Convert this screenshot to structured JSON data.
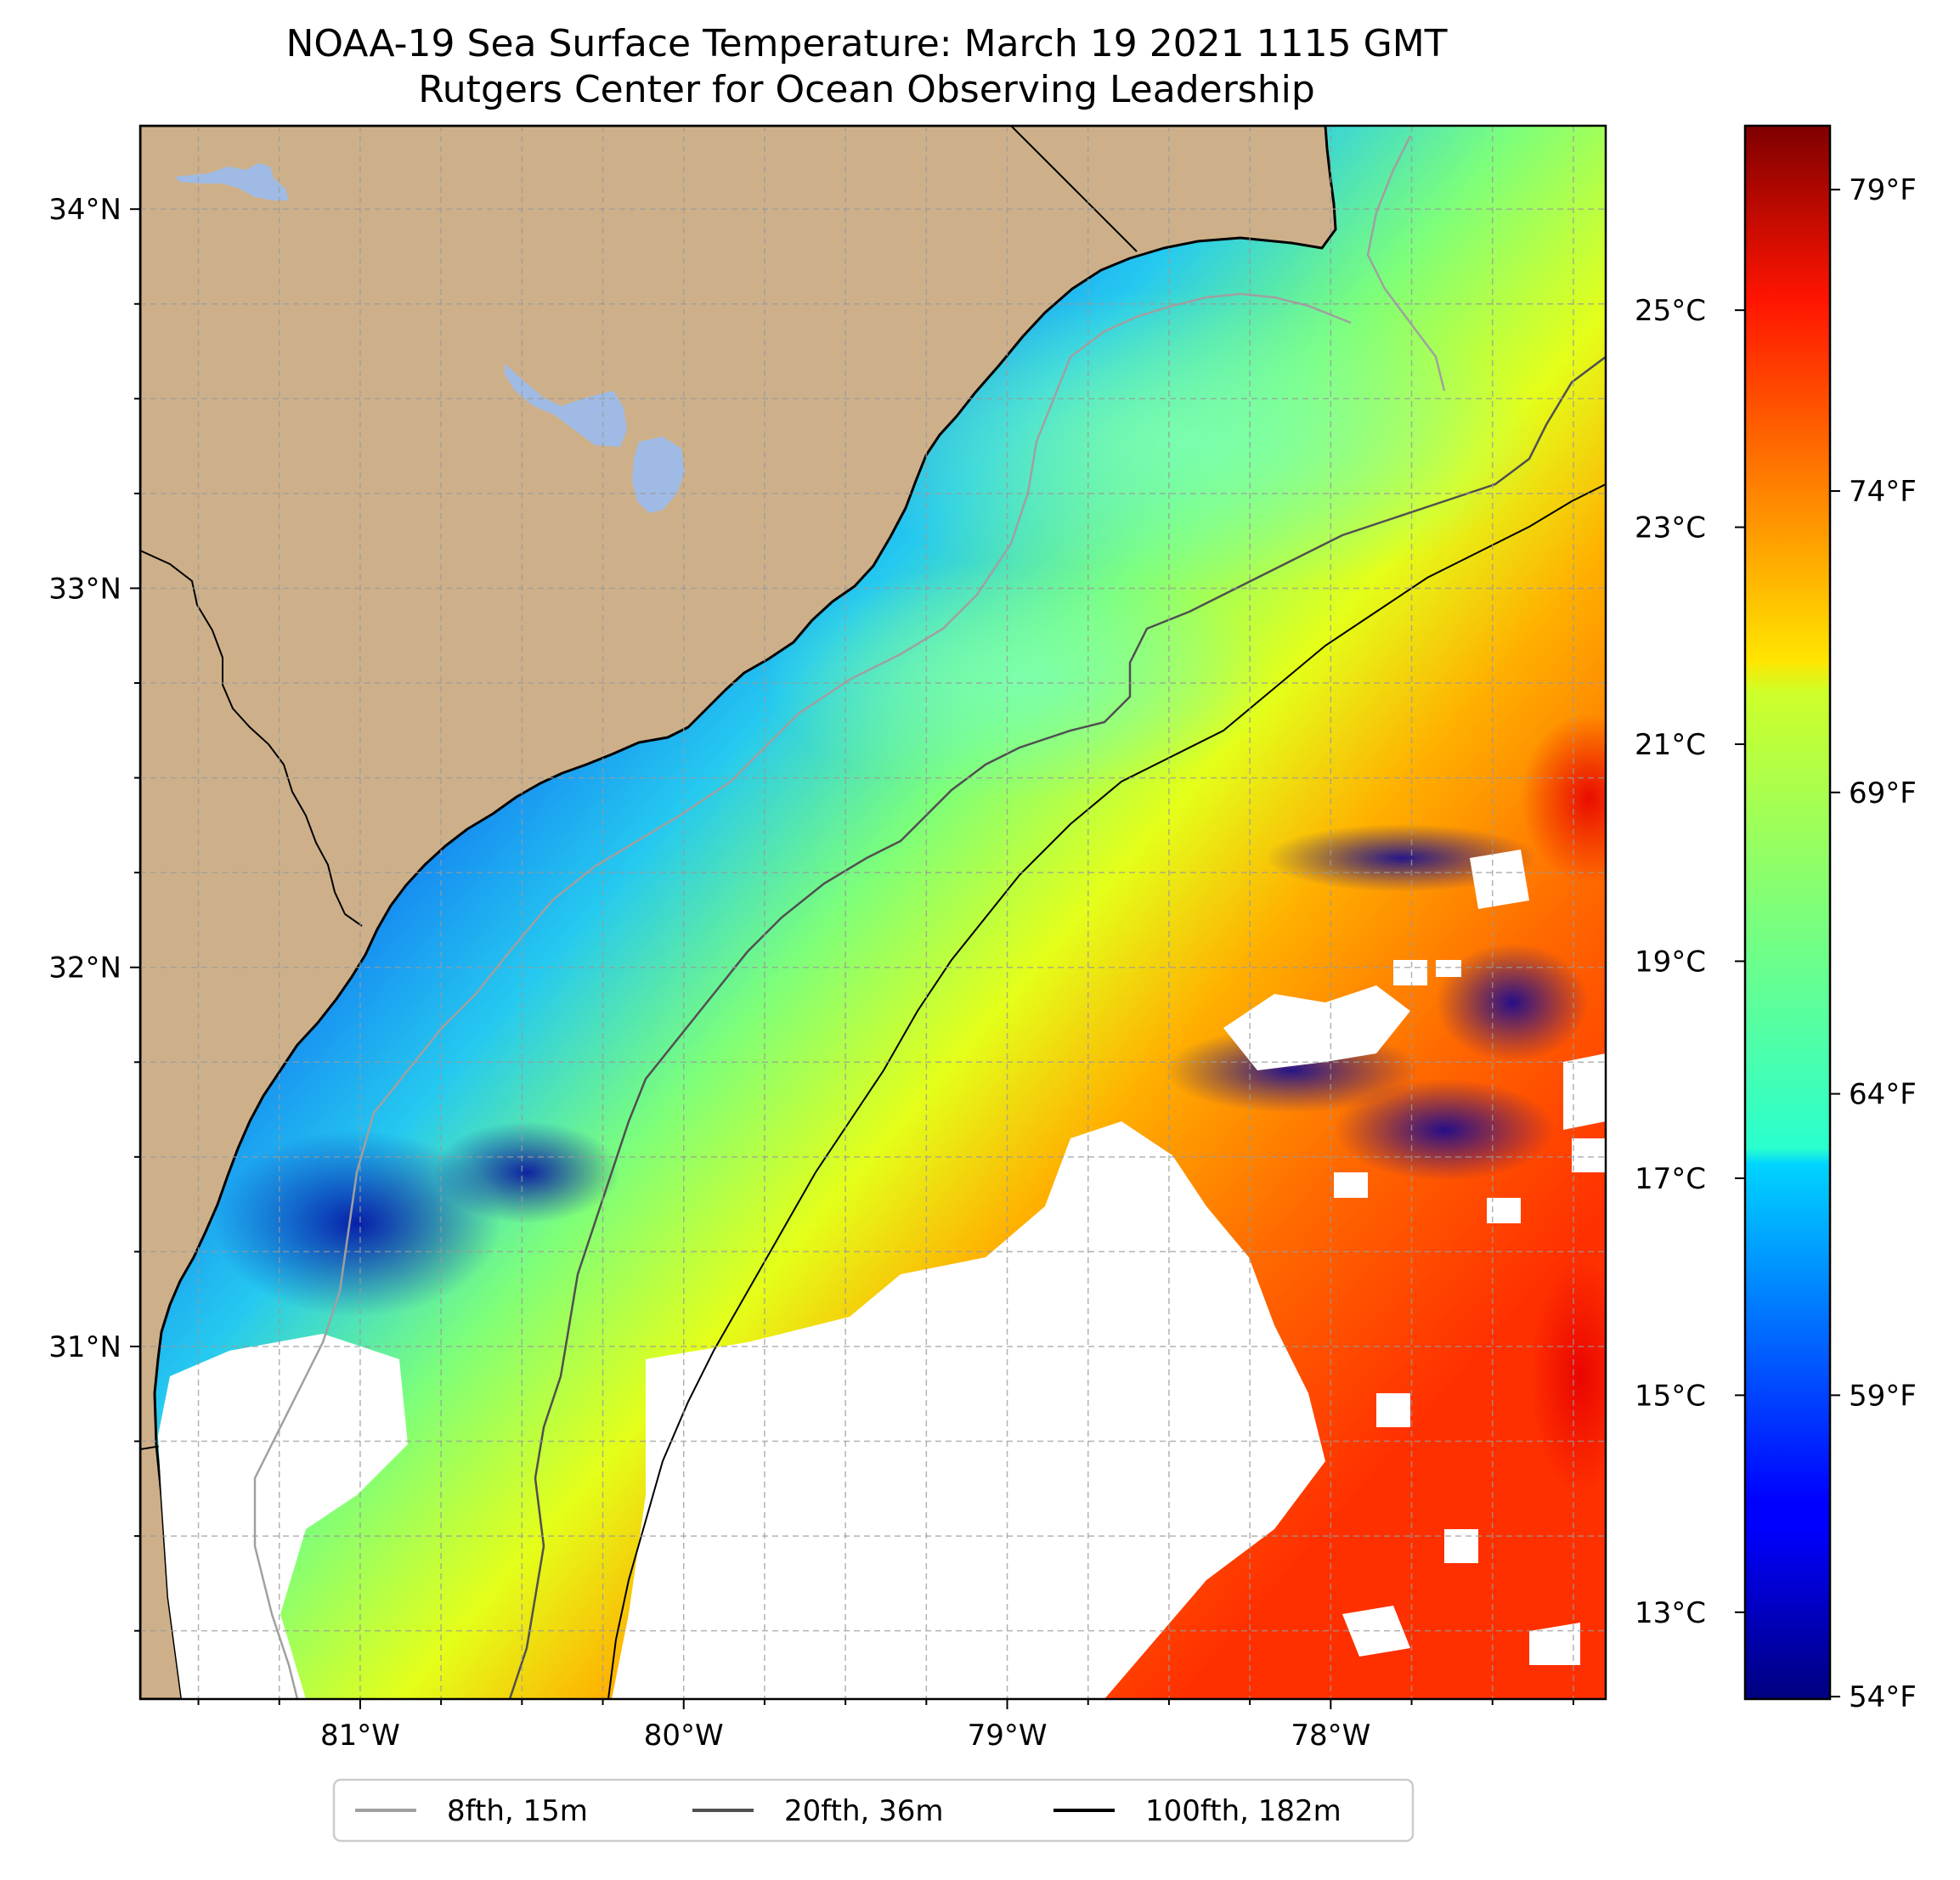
{
  "title": "NOAA-19 Sea Surface Temperature: March 19 2021 1115 GMT",
  "subtitle": "Rutgers Center for Ocean Observing Leadership",
  "colors": {
    "land": "#cdb08a",
    "lake": "#9fbbe5",
    "nodata": "#ffffff",
    "coast": "#000000",
    "grid": "#9a9a9a"
  },
  "map": {
    "lon_range": [
      -81.68,
      -77.15
    ],
    "lat_range": [
      30.07,
      34.22
    ],
    "lon_ticks": [
      {
        "value": -81,
        "label": "81°W"
      },
      {
        "value": -80,
        "label": "80°W"
      },
      {
        "value": -79,
        "label": "79°W"
      },
      {
        "value": -78,
        "label": "78°W"
      }
    ],
    "lat_ticks": [
      {
        "value": 31,
        "label": "31°N"
      },
      {
        "value": 32,
        "label": "32°N"
      },
      {
        "value": 33,
        "label": "33°N"
      },
      {
        "value": 34,
        "label": "34°N"
      }
    ],
    "grid": true,
    "colormap": "jet"
  },
  "colorbar": {
    "celsius_range": [
      12.2,
      26.7
    ],
    "celsius_ticks": [
      {
        "value": 13,
        "label": "13°C"
      },
      {
        "value": 15,
        "label": "15°C"
      },
      {
        "value": 17,
        "label": "17°C"
      },
      {
        "value": 19,
        "label": "19°C"
      },
      {
        "value": 21,
        "label": "21°C"
      },
      {
        "value": 23,
        "label": "23°C"
      },
      {
        "value": 25,
        "label": "25°C"
      }
    ],
    "fahrenheit_ticks": [
      {
        "value": 54,
        "label": "54°F"
      },
      {
        "value": 59,
        "label": "59°F"
      },
      {
        "value": 64,
        "label": "64°F"
      },
      {
        "value": 69,
        "label": "69°F"
      },
      {
        "value": 74,
        "label": "74°F"
      },
      {
        "value": 79,
        "label": "79°F"
      }
    ]
  },
  "legend": {
    "placement": "bottom-center",
    "items": [
      {
        "label": "8fth, 15m",
        "color": "#a0a0a0"
      },
      {
        "label": "20fth, 36m",
        "color": "#505050"
      },
      {
        "label": "100fth, 182m",
        "color": "#000000"
      }
    ]
  }
}
